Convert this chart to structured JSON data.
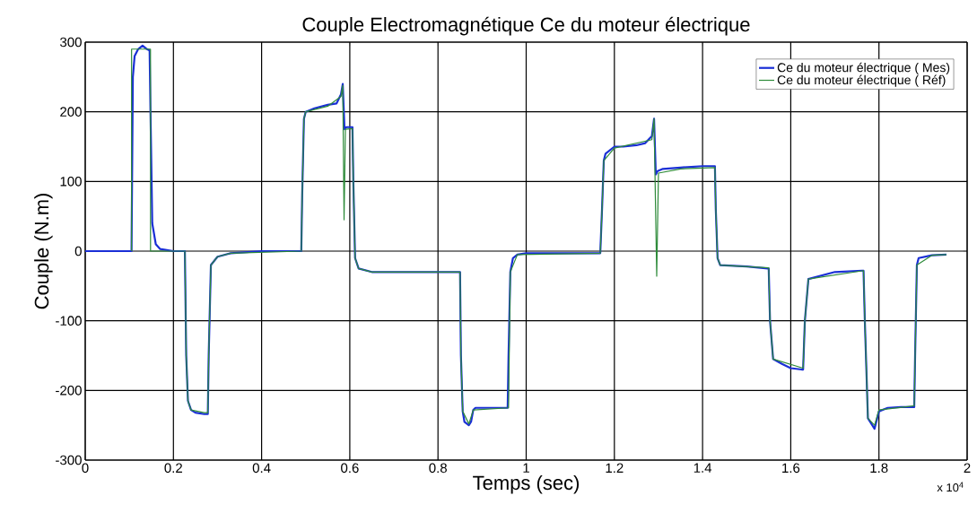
{
  "chart_data": {
    "type": "line",
    "title": "Couple Electromagnétique Ce du moteur électrique",
    "xlabel": "Temps (sec)",
    "ylabel": "Couple (N.m)",
    "annotations": [
      "x 10$^{4}$"
    ],
    "xlim": [
      0,
      2
    ],
    "ylim": [
      -300,
      300
    ],
    "xticks": [
      0,
      0.2,
      0.4,
      0.6,
      0.8,
      1,
      1.2,
      1.4,
      1.6,
      1.8,
      2
    ],
    "yticks": [
      -300,
      -200,
      -100,
      0,
      100,
      200,
      300
    ],
    "grid": true,
    "legend": "top right",
    "series": [
      {
        "name": "Ce du moteur électrique ( Mes)",
        "color": "#1a2fd6",
        "x": [
          0,
          0.1,
          0.105,
          0.108,
          0.112,
          0.12,
          0.13,
          0.14,
          0.146,
          0.148,
          0.152,
          0.16,
          0.17,
          0.2,
          0.226,
          0.229,
          0.233,
          0.24,
          0.25,
          0.27,
          0.278,
          0.28,
          0.285,
          0.3,
          0.33,
          0.4,
          0.49,
          0.492,
          0.496,
          0.5,
          0.52,
          0.55,
          0.57,
          0.58,
          0.584,
          0.588,
          0.592,
          0.6,
          0.606,
          0.608,
          0.612,
          0.62,
          0.65,
          0.75,
          0.85,
          0.852,
          0.856,
          0.86,
          0.87,
          0.875,
          0.88,
          0.885,
          0.9,
          0.93,
          0.958,
          0.96,
          0.964,
          0.97,
          0.98,
          1.0,
          1.1,
          1.168,
          1.172,
          1.176,
          1.18,
          1.2,
          1.22,
          1.25,
          1.27,
          1.285,
          1.29,
          1.294,
          1.298,
          1.31,
          1.35,
          1.4,
          1.428,
          1.43,
          1.434,
          1.44,
          1.5,
          1.548,
          1.55,
          1.553,
          1.56,
          1.58,
          1.6,
          1.625,
          1.628,
          1.632,
          1.64,
          1.7,
          1.762,
          1.765,
          1.768,
          1.775,
          1.79,
          1.8,
          1.82,
          1.85,
          1.88,
          1.882,
          1.886,
          1.89,
          1.92,
          1.953
        ],
        "values": [
          0,
          0,
          0,
          250,
          280,
          290,
          295,
          290,
          288,
          200,
          40,
          10,
          3,
          0,
          0,
          -150,
          -215,
          -228,
          -232,
          -234,
          -234,
          -150,
          -20,
          -8,
          -3,
          0,
          0,
          80,
          190,
          200,
          205,
          210,
          212,
          225,
          240,
          175,
          178,
          178,
          178,
          100,
          -10,
          -25,
          -30,
          -30,
          -30,
          -150,
          -230,
          -245,
          -250,
          -245,
          -228,
          -225,
          -225,
          -225,
          -225,
          -150,
          -30,
          -10,
          -5,
          -3,
          -3,
          -3,
          60,
          130,
          140,
          150,
          150,
          152,
          155,
          165,
          190,
          110,
          115,
          118,
          120,
          122,
          122,
          60,
          -10,
          -20,
          -22,
          -25,
          -25,
          -100,
          -155,
          -162,
          -168,
          -170,
          -170,
          -100,
          -40,
          -30,
          -28,
          -28,
          -100,
          -240,
          -255,
          -230,
          -225,
          -224,
          -224,
          -150,
          -20,
          -10,
          -6,
          -5
        ]
      },
      {
        "name": "Ce du moteur électrique ( Réf)",
        "color": "#2e8b3a",
        "x": [
          0.105,
          0.1051,
          0.148,
          0.1481,
          0.226,
          0.229,
          0.233,
          0.24,
          0.27,
          0.278,
          0.28,
          0.285,
          0.3,
          0.33,
          0.49,
          0.492,
          0.496,
          0.5,
          0.55,
          0.58,
          0.584,
          0.587,
          0.59,
          0.606,
          0.608,
          0.612,
          0.62,
          0.65,
          0.85,
          0.852,
          0.856,
          0.87,
          0.88,
          0.96,
          0.964,
          0.98,
          1.168,
          1.172,
          1.176,
          1.2,
          1.285,
          1.29,
          1.296,
          1.3,
          1.35,
          1.428,
          1.43,
          1.434,
          1.44,
          1.55,
          1.553,
          1.56,
          1.628,
          1.632,
          1.64,
          1.765,
          1.768,
          1.775,
          1.79,
          1.8,
          1.88,
          1.882,
          1.886,
          1.92,
          1.953
        ],
        "values": [
          0,
          290,
          290,
          0,
          0,
          -150,
          -215,
          -228,
          -232,
          -232,
          -150,
          -20,
          -8,
          -3,
          0,
          80,
          190,
          200,
          208,
          222,
          238,
          45,
          175,
          176,
          100,
          -10,
          -25,
          -30,
          -30,
          -150,
          -230,
          -248,
          -228,
          -225,
          -30,
          -5,
          -3,
          60,
          130,
          148,
          160,
          190,
          -36,
          112,
          118,
          120,
          60,
          -10,
          -20,
          -24,
          -100,
          -155,
          -168,
          -100,
          -40,
          -28,
          -100,
          -240,
          -250,
          -228,
          -222,
          -150,
          -20,
          -6,
          -5
        ]
      }
    ]
  }
}
